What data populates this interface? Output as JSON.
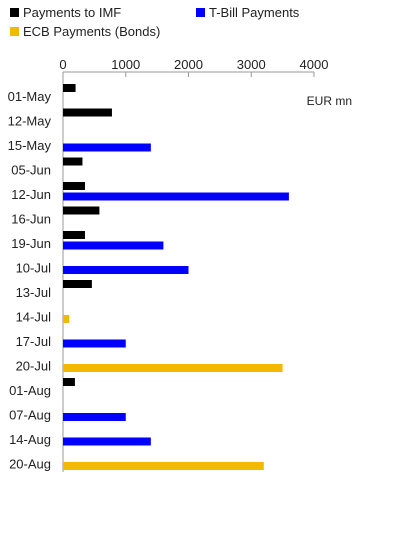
{
  "chart_data": {
    "type": "bar",
    "orientation": "horizontal",
    "unit_label": "EUR mn",
    "xlim": [
      0,
      4000
    ],
    "xticks": [
      0,
      1000,
      2000,
      3000,
      4000
    ],
    "xtick_labels": [
      "0",
      "1000",
      "2000",
      "3000",
      "4000"
    ],
    "categories": [
      "01-May",
      "12-May",
      "15-May",
      "05-Jun",
      "12-Jun",
      "16-Jun",
      "19-Jun",
      "10-Jul",
      "13-Jul",
      "14-Jul",
      "17-Jul",
      "20-Jul",
      "01-Aug",
      "07-Aug",
      "14-Aug",
      "20-Aug"
    ],
    "series": [
      {
        "name": "Payments to IMF",
        "color": "#000000",
        "values": [
          200,
          780,
          0,
          310,
          350,
          580,
          350,
          0,
          460,
          0,
          0,
          0,
          190,
          0,
          0,
          0
        ]
      },
      {
        "name": "T-Bill Payments",
        "color": "#0000ff",
        "values": [
          0,
          0,
          1400,
          0,
          3600,
          0,
          1600,
          2000,
          0,
          0,
          1000,
          0,
          0,
          1000,
          1400,
          0
        ]
      },
      {
        "name": "ECB Payments (Bonds)",
        "color": "#f5b800",
        "values": [
          0,
          0,
          0,
          0,
          0,
          0,
          0,
          0,
          0,
          100,
          0,
          3500,
          0,
          0,
          0,
          3200
        ]
      }
    ],
    "legend_placement": "top",
    "grid": false
  }
}
